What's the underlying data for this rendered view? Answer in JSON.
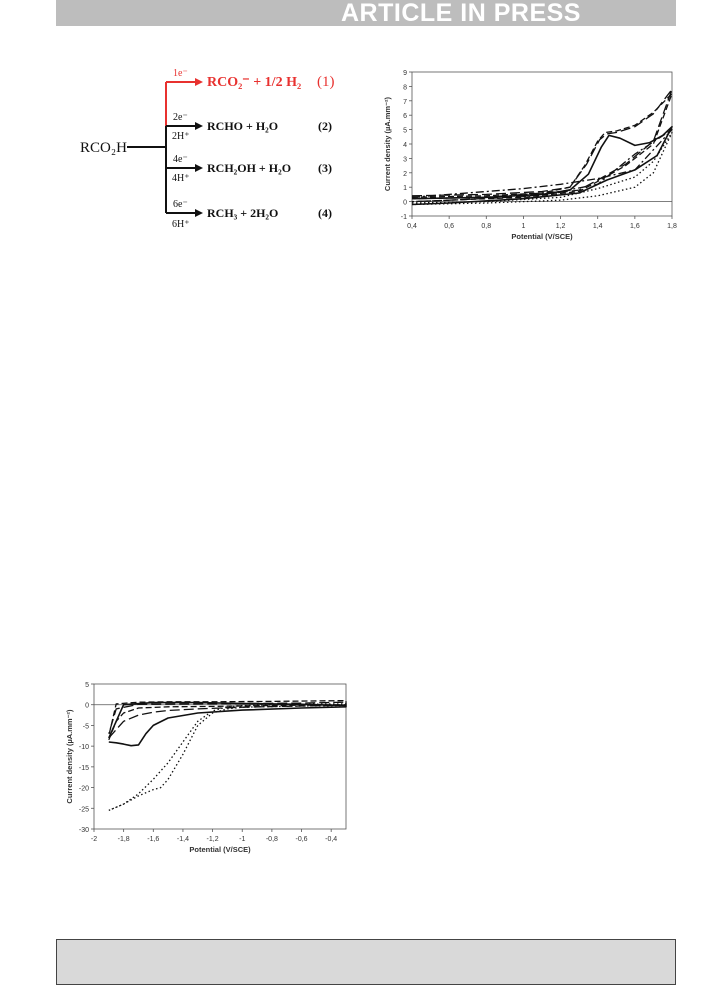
{
  "header": {
    "banner": "ARTICLE IN PRESS"
  },
  "scheme": {
    "reactant": "RCO₂H",
    "reactions": [
      {
        "electrons": "1e⁻",
        "protons": "",
        "product": "RCO₂⁻ + 1/2 H₂",
        "number": "(1)",
        "color": "#e8312f"
      },
      {
        "electrons": "2e⁻",
        "protons": "2H⁺",
        "product": "RCHO + H₂O",
        "number": "(2)",
        "color": "#111111"
      },
      {
        "electrons": "4e⁻",
        "protons": "4H⁺",
        "product": "RCH₂OH + H₂O",
        "number": "(3)",
        "color": "#111111"
      },
      {
        "electrons": "6e⁻",
        "protons": "6H⁺",
        "product": "RCH₃ + 2H₂O",
        "number": "(4)",
        "color": "#111111"
      }
    ]
  },
  "chart_data": [
    {
      "type": "line",
      "xlabel": "Potential (V/SCE)",
      "ylabel": "Current density (µA.mm⁻²)",
      "xlim": [
        0.4,
        1.8
      ],
      "ylim": [
        -1,
        9
      ],
      "xticks": [
        "0,4",
        "0,6",
        "0,8",
        "1",
        "1,2",
        "1,4",
        "1,6",
        "1,8"
      ],
      "yticks": [
        "-1",
        "0",
        "1",
        "2",
        "3",
        "4",
        "5",
        "6",
        "7",
        "8",
        "9"
      ],
      "grid": false,
      "series": [
        {
          "style": "solid",
          "x": [
            0.4,
            0.8,
            1.1,
            1.25,
            1.35,
            1.42,
            1.46,
            1.52,
            1.6,
            1.68,
            1.75,
            1.8,
            1.8,
            1.72,
            1.6,
            1.45,
            1.3,
            1.0,
            0.6,
            0.4
          ],
          "y": [
            0.2,
            0.3,
            0.5,
            0.8,
            1.9,
            3.8,
            4.6,
            4.4,
            3.9,
            4.1,
            4.6,
            5.2,
            5.2,
            3.2,
            2.2,
            1.5,
            0.6,
            0.2,
            -0.1,
            -0.2
          ]
        },
        {
          "style": "dashed",
          "x": [
            0.4,
            0.8,
            1.1,
            1.25,
            1.33,
            1.4,
            1.44,
            1.5,
            1.6,
            1.7,
            1.8,
            1.8,
            1.7,
            1.55,
            1.4,
            1.3,
            1.0,
            0.6,
            0.4
          ],
          "y": [
            0.3,
            0.4,
            0.6,
            1.0,
            2.5,
            4.2,
            4.8,
            4.9,
            5.3,
            6.2,
            7.5,
            7.5,
            4.0,
            2.5,
            1.4,
            0.7,
            0.3,
            0.1,
            0.0
          ]
        },
        {
          "style": "long-dash",
          "x": [
            0.4,
            0.8,
            1.1,
            1.25,
            1.34,
            1.41,
            1.45,
            1.5,
            1.6,
            1.7,
            1.8,
            1.8,
            1.7,
            1.55,
            1.4,
            1.3,
            1.0,
            0.6,
            0.4
          ],
          "y": [
            0.4,
            0.5,
            0.7,
            1.0,
            2.6,
            4.3,
            4.7,
            4.8,
            5.2,
            6.1,
            7.8,
            7.8,
            4.2,
            2.6,
            1.5,
            0.8,
            0.35,
            0.1,
            0.0
          ]
        },
        {
          "style": "dash-dot",
          "x": [
            0.4,
            0.6,
            0.8,
            1.0,
            1.2,
            1.4,
            1.6,
            1.8,
            1.8,
            1.6,
            1.4,
            1.2,
            1.0,
            0.8,
            0.6,
            0.4
          ],
          "y": [
            0.3,
            0.5,
            0.7,
            0.9,
            1.2,
            1.6,
            2.2,
            5.0,
            5.0,
            3.3,
            1.2,
            0.7,
            0.5,
            0.3,
            0.25,
            0.2
          ]
        },
        {
          "style": "dotted",
          "x": [
            0.4,
            0.8,
            1.2,
            1.4,
            1.6,
            1.7,
            1.8,
            1.8,
            1.7,
            1.6,
            1.4,
            1.2,
            0.8,
            0.4
          ],
          "y": [
            -0.1,
            0.0,
            0.3,
            0.9,
            1.7,
            2.8,
            4.8,
            4.8,
            2.0,
            1.0,
            0.4,
            0.1,
            -0.1,
            -0.2
          ]
        }
      ]
    },
    {
      "type": "line",
      "xlabel": "Potential (V/SCE)",
      "ylabel": "Current density (µA.mm⁻²)",
      "xlim": [
        -2,
        -0.3
      ],
      "ylim": [
        -30,
        5
      ],
      "xticks": [
        "-2",
        "-1,8",
        "-1,6",
        "-1,4",
        "-1,2",
        "-1",
        "-0,8",
        "-0,6",
        "-0,4"
      ],
      "yticks": [
        "5",
        "0",
        "-5",
        "-10",
        "-15",
        "-20",
        "-25",
        "-30"
      ],
      "grid": false,
      "series": [
        {
          "style": "solid",
          "x": [
            -1.9,
            -1.85,
            -1.8,
            -1.75,
            -1.7,
            -1.65,
            -1.6,
            -1.5,
            -1.3,
            -1.0,
            -0.6,
            -0.3,
            -0.3,
            -0.6,
            -1.0,
            -1.3,
            -1.6,
            -1.8,
            -1.9
          ],
          "y": [
            -9,
            -9.2,
            -9.5,
            -9.9,
            -9.7,
            -7.0,
            -5.0,
            -3.2,
            -2.0,
            -1.3,
            -0.8,
            -0.5,
            -0.2,
            0.1,
            0.3,
            0.5,
            0.5,
            0.0,
            -8.0
          ]
        },
        {
          "style": "dashed",
          "x": [
            -1.9,
            -1.85,
            -1.8,
            -1.7,
            -1.5,
            -1.2,
            -0.8,
            -0.3,
            -0.3,
            -0.8,
            -1.2,
            -1.5,
            -1.7,
            -1.85,
            -1.9
          ],
          "y": [
            -8.5,
            -4.0,
            -2.0,
            -0.8,
            -0.5,
            -0.4,
            -0.2,
            0.0,
            1.0,
            0.8,
            0.7,
            0.7,
            0.6,
            0.2,
            -7.5
          ]
        },
        {
          "style": "long-dash",
          "x": [
            -1.9,
            -1.8,
            -1.7,
            -1.6,
            -1.5,
            -1.3,
            -1.0,
            -0.6,
            -0.3,
            -0.3,
            -0.6,
            -1.0,
            -1.4,
            -1.7,
            -1.85,
            -1.9
          ],
          "y": [
            -8.0,
            -4.0,
            -2.5,
            -1.8,
            -1.4,
            -1.0,
            -0.6,
            -0.3,
            -0.1,
            0.6,
            0.4,
            0.3,
            0.2,
            0.1,
            -1.0,
            -7.0
          ]
        },
        {
          "style": "dotted",
          "x": [
            -1.9,
            -1.8,
            -1.7,
            -1.6,
            -1.55,
            -1.5,
            -1.4,
            -1.3,
            -1.2,
            -1.1,
            -1.0,
            -0.6,
            -0.3,
            -0.3,
            -0.6,
            -1.0,
            -1.1,
            -1.2,
            -1.3,
            -1.4,
            -1.5,
            -1.6,
            -1.7,
            -1.8,
            -1.9
          ],
          "y": [
            -25.5,
            -24.0,
            -22.0,
            -20.5,
            -20.0,
            -18.0,
            -12.0,
            -5.0,
            -2.0,
            -1.0,
            -0.6,
            -0.3,
            -0.2,
            0.2,
            0.1,
            -0.2,
            -0.5,
            -1.5,
            -4.0,
            -9.0,
            -14.0,
            -18.0,
            -21.5,
            -24.0,
            -25.5
          ]
        }
      ]
    }
  ]
}
